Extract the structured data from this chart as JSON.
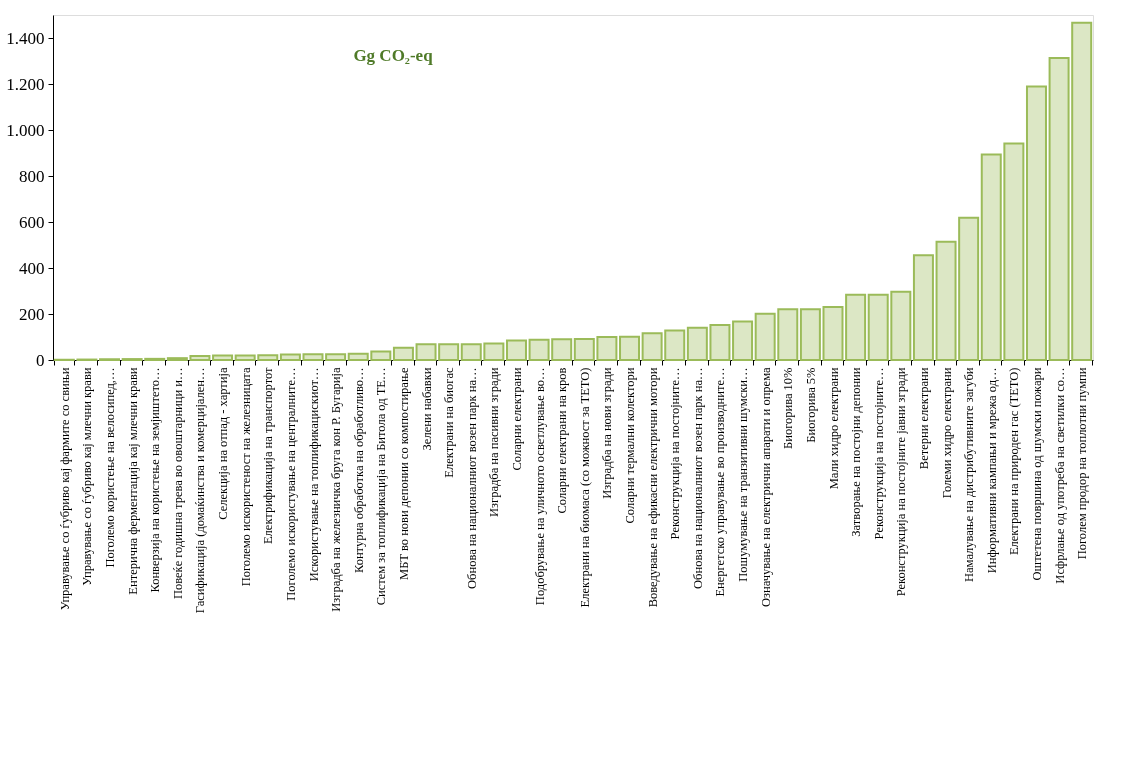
{
  "chart_data": {
    "type": "bar",
    "title": "Gg CO₂-eq",
    "categories": [
      "Управување со ѓубриво кај фармите со свињи",
      "Управување со ѓубриво кај млечни крави",
      "Поголемо користење на велосипед,…",
      "Ентерична ферментација кај млечни крави",
      "Конверзија на користење на земјиштето…",
      "Повеќе годишна трева во овоштарници и…",
      "Гасификација (домаќинства и комерцијален…",
      "Селекција на отпад - хартија",
      "Поголемо искористеност на железницата",
      "Електрификација на транспортот",
      "Поголемо искористување на централните…",
      "Искористување на топлификацискиот…",
      "Изградба на железничка бруга кон Р. Бугарија",
      "Контурна обработка на обработливо…",
      "Систем за топлификација на Битола од ТЕ…",
      "МБТ во нови депонии со компостирање",
      "Зелени набавки",
      "Електрани на биогас",
      "Обнова на националниот возен парк на…",
      "Изградба на пасивни згради",
      "Соларни електрани",
      "Подобрување на уличното осветлување во…",
      "Соларни електрани на кров",
      "Електрани на биомаса (со можност за ТЕТО)",
      "Изградба на нови згради",
      "Соларни термални  колектори",
      "Воведување на ефикасни електрични мотори",
      "Реконструкција на постојните…",
      "Обнова на националниот возен парк на…",
      "Енергетско управување во производните…",
      "Пошумување на транзитивни шумски…",
      "Означување на електрични апарати и опрема",
      "Биогорива 10%",
      "Биогорива 5%",
      "Мали хидро електрани",
      "Затворање на постојни депонии",
      "Реконструкција на постојните…",
      "Реконструкција на постојните јавни згради",
      "Ветерни електрани",
      "Големи хидро електрани",
      "Намалување на дистрибутивните загуби",
      "Информативни кампањи и мрежа од…",
      "Електрани на природен гас (ТЕТО)",
      "Оштетена површина од шумски пожари",
      "Исфрлање од употреба на светилки со…",
      "Поголем продор на топлотни пумпи"
    ],
    "values": [
      1,
      2,
      3,
      4,
      5,
      8,
      17,
      20,
      20,
      21,
      24,
      25,
      25,
      27,
      37,
      53,
      68,
      68,
      68,
      72,
      85,
      88,
      90,
      91,
      100,
      101,
      116,
      128,
      140,
      152,
      167,
      201,
      221,
      221,
      230,
      284,
      284,
      297,
      455,
      514,
      618,
      893,
      941,
      1189,
      1313,
      1466
    ],
    "color": "#9bbb59",
    "ylim": [
      0,
      1500
    ],
    "yticks": [
      0,
      200,
      400,
      600,
      800,
      {
        "value": 1000,
        "label": "1.000"
      },
      {
        "value": 1200,
        "label": "1.200"
      },
      {
        "value": 1400,
        "label": "1.400"
      }
    ],
    "grid": false
  }
}
